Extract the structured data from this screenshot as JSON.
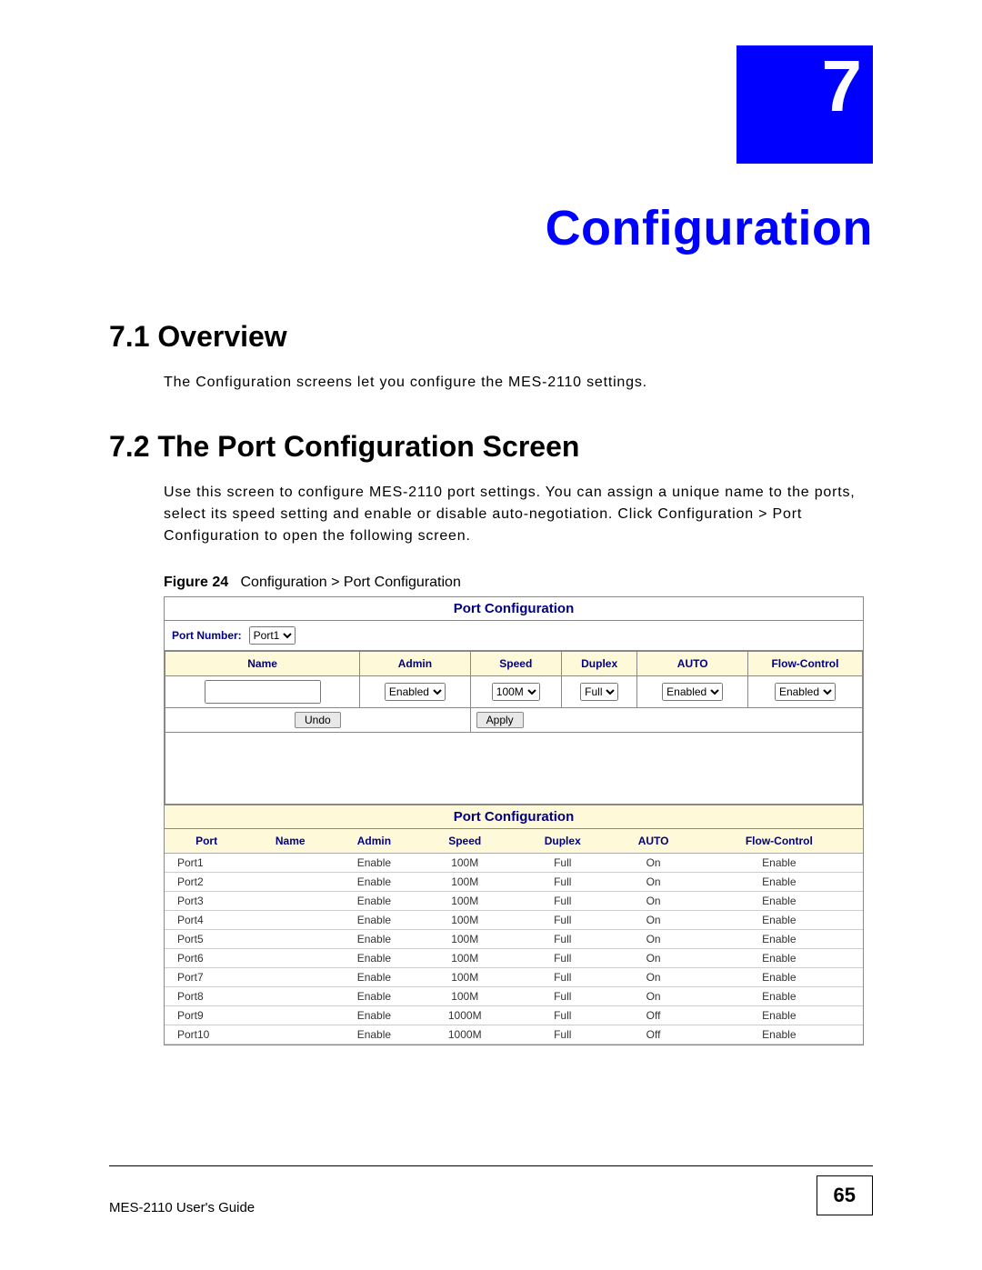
{
  "chapter": {
    "number": "7",
    "title": "Configuration"
  },
  "sections": {
    "s1": {
      "heading": "7.1  Overview",
      "para": "The Configuration screens let you configure the MES-2110 settings."
    },
    "s2": {
      "heading": "7.2  The Port Configuration Screen",
      "para": "Use this screen to configure MES-2110 port settings. You can assign a unique name to the ports, select its speed setting and enable or disable auto-negotiation. Click Configuration > Port Configuration to open the following screen."
    }
  },
  "figure": {
    "label": "Figure 24",
    "caption": "Configuration > Port Configuration"
  },
  "screenshot": {
    "title": "Port Configuration",
    "port_number_label": "Port Number:",
    "port_number_value": "Port1",
    "columns": [
      "Name",
      "Admin",
      "Speed",
      "Duplex",
      "AUTO",
      "Flow-Control"
    ],
    "row": {
      "name": "",
      "admin": "Enabled",
      "speed": "100M",
      "duplex": "Full",
      "auto": "Enabled",
      "flow": "Enabled"
    },
    "buttons": {
      "undo": "Undo",
      "apply": "Apply"
    },
    "title2": "Port Configuration",
    "status_columns": [
      "Port",
      "Name",
      "Admin",
      "Speed",
      "Duplex",
      "AUTO",
      "Flow-Control"
    ],
    "status_rows": [
      {
        "port": "Port1",
        "name": "",
        "admin": "Enable",
        "speed": "100M",
        "duplex": "Full",
        "auto": "On",
        "flow": "Enable"
      },
      {
        "port": "Port2",
        "name": "",
        "admin": "Enable",
        "speed": "100M",
        "duplex": "Full",
        "auto": "On",
        "flow": "Enable"
      },
      {
        "port": "Port3",
        "name": "",
        "admin": "Enable",
        "speed": "100M",
        "duplex": "Full",
        "auto": "On",
        "flow": "Enable"
      },
      {
        "port": "Port4",
        "name": "",
        "admin": "Enable",
        "speed": "100M",
        "duplex": "Full",
        "auto": "On",
        "flow": "Enable"
      },
      {
        "port": "Port5",
        "name": "",
        "admin": "Enable",
        "speed": "100M",
        "duplex": "Full",
        "auto": "On",
        "flow": "Enable"
      },
      {
        "port": "Port6",
        "name": "",
        "admin": "Enable",
        "speed": "100M",
        "duplex": "Full",
        "auto": "On",
        "flow": "Enable"
      },
      {
        "port": "Port7",
        "name": "",
        "admin": "Enable",
        "speed": "100M",
        "duplex": "Full",
        "auto": "On",
        "flow": "Enable"
      },
      {
        "port": "Port8",
        "name": "",
        "admin": "Enable",
        "speed": "100M",
        "duplex": "Full",
        "auto": "On",
        "flow": "Enable"
      },
      {
        "port": "Port9",
        "name": "",
        "admin": "Enable",
        "speed": "1000M",
        "duplex": "Full",
        "auto": "Off",
        "flow": "Enable"
      },
      {
        "port": "Port10",
        "name": "",
        "admin": "Enable",
        "speed": "1000M",
        "duplex": "Full",
        "auto": "Off",
        "flow": "Enable"
      }
    ]
  },
  "footer": {
    "guide": "MES-2110 User's Guide",
    "page": "65"
  },
  "colors": {
    "chapter_box_bg": "#0000ff",
    "chapter_title": "#0000ff",
    "table_header_bg": "#fef9d8",
    "table_header_fg": "#000080"
  }
}
